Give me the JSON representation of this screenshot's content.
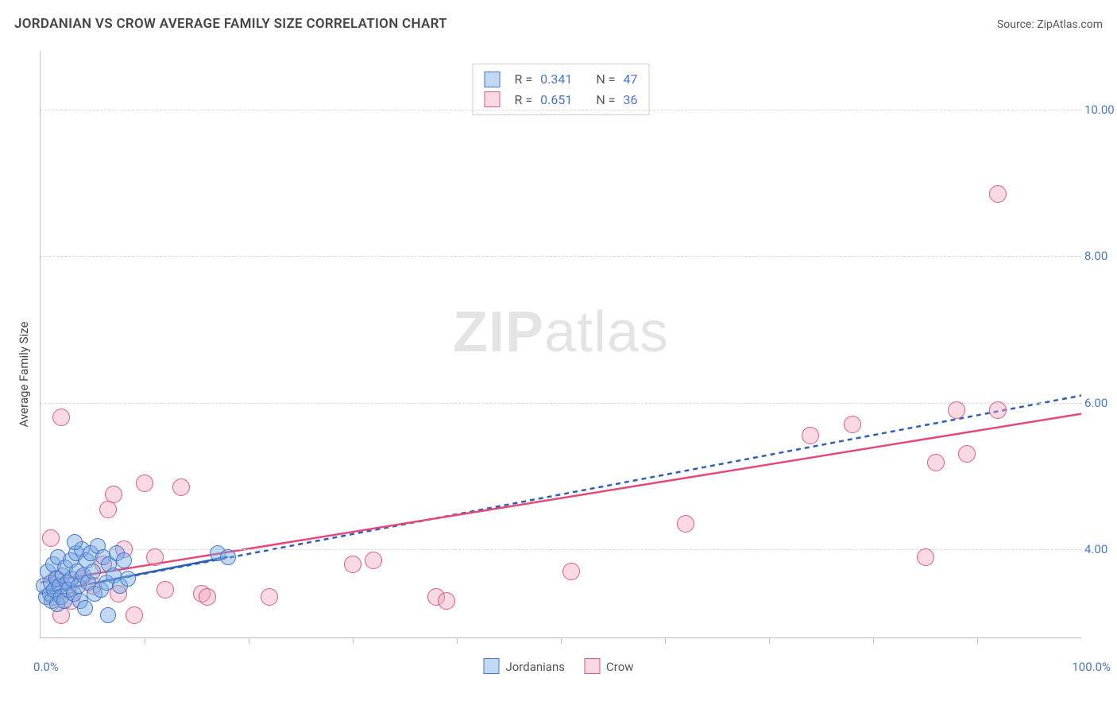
{
  "header": {
    "title": "JORDANIAN VS CROW AVERAGE FAMILY SIZE CORRELATION CHART",
    "source_label": "Source: ZipAtlas.com"
  },
  "watermark": {
    "bold": "ZIP",
    "rest": "atlas"
  },
  "axes": {
    "y_label": "Average Family Size",
    "x_min_label": "0.0%",
    "x_max_label": "100.0%",
    "xlim": [
      0,
      100
    ],
    "ylim": [
      2.8,
      10.8
    ],
    "y_ticks": [
      4.0,
      6.0,
      8.0,
      10.0
    ],
    "y_tick_labels": [
      "4.00",
      "6.00",
      "8.00",
      "10.00"
    ],
    "x_ticks": [
      10,
      20,
      30,
      40,
      50,
      60,
      70,
      80,
      90
    ],
    "grid_color": "#d9d9d9",
    "axis_color": "#bfbfbf",
    "tick_label_color": "#4a76c7",
    "label_fontsize": 15,
    "title_fontsize": 17,
    "title_color": "#444444"
  },
  "series": {
    "jordanians": {
      "label": "Jordanians",
      "marker_fill": "rgba(120,170,230,0.45)",
      "marker_stroke": "#4a76c7",
      "marker_radius": 9,
      "line_color": "#2f5fb5",
      "line_width": 2.5,
      "line_dash": "6,5",
      "trend": {
        "x1": 0,
        "y1": 3.4,
        "x2": 100,
        "y2": 6.1
      },
      "solid_trend": {
        "x1": 0,
        "y1": 3.4,
        "x2": 18,
        "y2": 3.9
      },
      "points": [
        [
          0.3,
          3.5
        ],
        [
          0.5,
          3.35
        ],
        [
          0.7,
          3.7
        ],
        [
          0.9,
          3.4
        ],
        [
          1.0,
          3.55
        ],
        [
          1.1,
          3.3
        ],
        [
          1.2,
          3.8
        ],
        [
          1.3,
          3.45
        ],
        [
          1.5,
          3.6
        ],
        [
          1.6,
          3.25
        ],
        [
          1.7,
          3.9
        ],
        [
          1.8,
          3.5
        ],
        [
          2.0,
          3.35
        ],
        [
          2.1,
          3.65
        ],
        [
          2.3,
          3.3
        ],
        [
          2.4,
          3.75
        ],
        [
          2.6,
          3.55
        ],
        [
          2.7,
          3.45
        ],
        [
          2.9,
          3.85
        ],
        [
          3.0,
          3.6
        ],
        [
          3.2,
          3.4
        ],
        [
          3.4,
          3.95
        ],
        [
          3.5,
          3.7
        ],
        [
          3.7,
          3.5
        ],
        [
          3.8,
          3.3
        ],
        [
          4.0,
          4.0
        ],
        [
          4.1,
          3.65
        ],
        [
          4.4,
          3.85
        ],
        [
          4.6,
          3.55
        ],
        [
          4.8,
          3.95
        ],
        [
          5.0,
          3.7
        ],
        [
          5.2,
          3.4
        ],
        [
          5.5,
          4.05
        ],
        [
          5.8,
          3.45
        ],
        [
          6.0,
          3.9
        ],
        [
          6.3,
          3.55
        ],
        [
          6.6,
          3.8
        ],
        [
          7.0,
          3.65
        ],
        [
          7.3,
          3.95
        ],
        [
          7.6,
          3.5
        ],
        [
          8.0,
          3.85
        ],
        [
          8.4,
          3.6
        ],
        [
          6.5,
          3.1
        ],
        [
          4.3,
          3.2
        ],
        [
          3.3,
          4.1
        ],
        [
          17.0,
          3.95
        ],
        [
          18.0,
          3.9
        ]
      ]
    },
    "crow": {
      "label": "Crow",
      "marker_fill": "rgba(240,160,185,0.40)",
      "marker_stroke": "#d95a87",
      "marker_radius": 10,
      "line_color": "#e24a7a",
      "line_width": 2.5,
      "line_dash": "none",
      "trend": {
        "x1": 0,
        "y1": 3.55,
        "x2": 100,
        "y2": 5.85
      },
      "points": [
        [
          1.0,
          4.15
        ],
        [
          1.2,
          3.35
        ],
        [
          1.5,
          3.6
        ],
        [
          2.0,
          3.1
        ],
        [
          2.0,
          5.8
        ],
        [
          2.5,
          3.45
        ],
        [
          3.0,
          3.3
        ],
        [
          4.0,
          3.6
        ],
        [
          5.0,
          3.5
        ],
        [
          6.0,
          3.8
        ],
        [
          6.5,
          4.55
        ],
        [
          7.0,
          4.75
        ],
        [
          7.5,
          3.4
        ],
        [
          8.0,
          4.0
        ],
        [
          9.0,
          3.1
        ],
        [
          10.0,
          4.9
        ],
        [
          11.0,
          3.9
        ],
        [
          12.0,
          3.45
        ],
        [
          13.5,
          4.85
        ],
        [
          15.5,
          3.4
        ],
        [
          16.0,
          3.35
        ],
        [
          22.0,
          3.35
        ],
        [
          30.0,
          3.8
        ],
        [
          32.0,
          3.85
        ],
        [
          38.0,
          3.35
        ],
        [
          39.0,
          3.3
        ],
        [
          51.0,
          3.7
        ],
        [
          62.0,
          4.35
        ],
        [
          74.0,
          5.55
        ],
        [
          78.0,
          5.7
        ],
        [
          85.0,
          3.9
        ],
        [
          86.0,
          5.18
        ],
        [
          88.0,
          5.9
        ],
        [
          89.0,
          5.3
        ],
        [
          92.0,
          5.9
        ],
        [
          92.0,
          8.85
        ]
      ]
    }
  },
  "stats_box": {
    "rows": [
      {
        "swatch_fill": "rgba(120,170,230,0.45)",
        "swatch_stroke": "#4a76c7",
        "r_label": "R =",
        "r_value": "0.341",
        "n_label": "N =",
        "n_value": "47"
      },
      {
        "swatch_fill": "rgba(240,160,185,0.40)",
        "swatch_stroke": "#d95a87",
        "r_label": "R =",
        "r_value": "0.651",
        "n_label": "N =",
        "n_value": "36"
      }
    ]
  },
  "legend_bottom": [
    {
      "swatch_fill": "rgba(120,170,230,0.45)",
      "swatch_stroke": "#4a76c7",
      "label": "Jordanians"
    },
    {
      "swatch_fill": "rgba(240,160,185,0.40)",
      "swatch_stroke": "#d95a87",
      "label": "Crow"
    }
  ],
  "background_color": "#ffffff"
}
